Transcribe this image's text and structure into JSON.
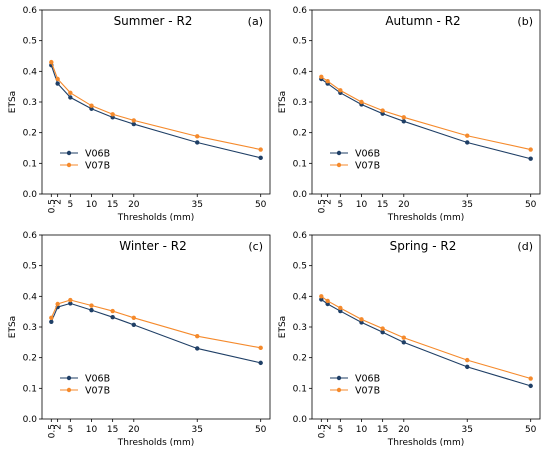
{
  "colors": {
    "series_1": "#1f3f66",
    "series_2": "#f58a2c"
  },
  "chart_data": [
    {
      "type": "line",
      "title": "Summer - R2",
      "panel_tag": "(a)",
      "xlabel": "Thresholds (mm)",
      "ylabel": "ETSa",
      "x": [
        0.5,
        2,
        5,
        10,
        15,
        20,
        35,
        50
      ],
      "xticks": [
        "0.5",
        "2",
        "5",
        "10",
        "15",
        "20",
        "35",
        "50"
      ],
      "ylim": [
        0,
        0.6
      ],
      "yticks": [
        "0.0",
        "0.1",
        "0.2",
        "0.3",
        "0.4",
        "0.5",
        "0.6"
      ],
      "legend": "lower-left",
      "grid": false,
      "series": [
        {
          "name": "V06B",
          "values": [
            0.42,
            0.36,
            0.315,
            0.278,
            0.25,
            0.228,
            0.168,
            0.118
          ]
        },
        {
          "name": "V07B",
          "values": [
            0.43,
            0.375,
            0.33,
            0.288,
            0.26,
            0.24,
            0.188,
            0.145
          ]
        }
      ]
    },
    {
      "type": "line",
      "title": "Autumn - R2",
      "panel_tag": "(b)",
      "xlabel": "Thresholds (mm)",
      "ylabel": "ETSa",
      "x": [
        0.5,
        2,
        5,
        10,
        15,
        20,
        35,
        50
      ],
      "xticks": [
        "0.5",
        "2",
        "5",
        "10",
        "15",
        "20",
        "35",
        "50"
      ],
      "ylim": [
        0,
        0.6
      ],
      "yticks": [
        "0.0",
        "0.1",
        "0.2",
        "0.3",
        "0.4",
        "0.5",
        "0.6"
      ],
      "legend": "lower-left",
      "grid": false,
      "series": [
        {
          "name": "V06B",
          "values": [
            0.375,
            0.36,
            0.33,
            0.292,
            0.262,
            0.237,
            0.168,
            0.115
          ]
        },
        {
          "name": "V07B",
          "values": [
            0.382,
            0.368,
            0.338,
            0.3,
            0.272,
            0.25,
            0.19,
            0.145
          ]
        }
      ]
    },
    {
      "type": "line",
      "title": "Winter - R2",
      "panel_tag": "(c)",
      "xlabel": "Thresholds (mm)",
      "ylabel": "ETSa",
      "x": [
        0.5,
        2,
        5,
        10,
        15,
        20,
        35,
        50
      ],
      "xticks": [
        "0.5",
        "2",
        "5",
        "10",
        "15",
        "20",
        "35",
        "50"
      ],
      "ylim": [
        0,
        0.6
      ],
      "yticks": [
        "0.0",
        "0.1",
        "0.2",
        "0.3",
        "0.4",
        "0.5",
        "0.6"
      ],
      "legend": "lower-left",
      "grid": false,
      "series": [
        {
          "name": "V06B",
          "values": [
            0.317,
            0.365,
            0.377,
            0.355,
            0.332,
            0.307,
            0.23,
            0.183
          ]
        },
        {
          "name": "V07B",
          "values": [
            0.33,
            0.375,
            0.388,
            0.37,
            0.352,
            0.33,
            0.27,
            0.232
          ]
        }
      ]
    },
    {
      "type": "line",
      "title": "Spring - R2",
      "panel_tag": "(d)",
      "xlabel": "Thresholds (mm)",
      "ylabel": "ETSa",
      "x": [
        0.5,
        2,
        5,
        10,
        15,
        20,
        35,
        50
      ],
      "xticks": [
        "0.5",
        "2",
        "5",
        "10",
        "15",
        "20",
        "35",
        "50"
      ],
      "ylim": [
        0,
        0.6
      ],
      "yticks": [
        "0.0",
        "0.1",
        "0.2",
        "0.3",
        "0.4",
        "0.5",
        "0.6"
      ],
      "legend": "lower-left",
      "grid": false,
      "series": [
        {
          "name": "V06B",
          "values": [
            0.39,
            0.375,
            0.352,
            0.315,
            0.283,
            0.25,
            0.17,
            0.108
          ]
        },
        {
          "name": "V07B",
          "values": [
            0.4,
            0.385,
            0.362,
            0.325,
            0.295,
            0.265,
            0.192,
            0.132
          ]
        }
      ]
    }
  ]
}
